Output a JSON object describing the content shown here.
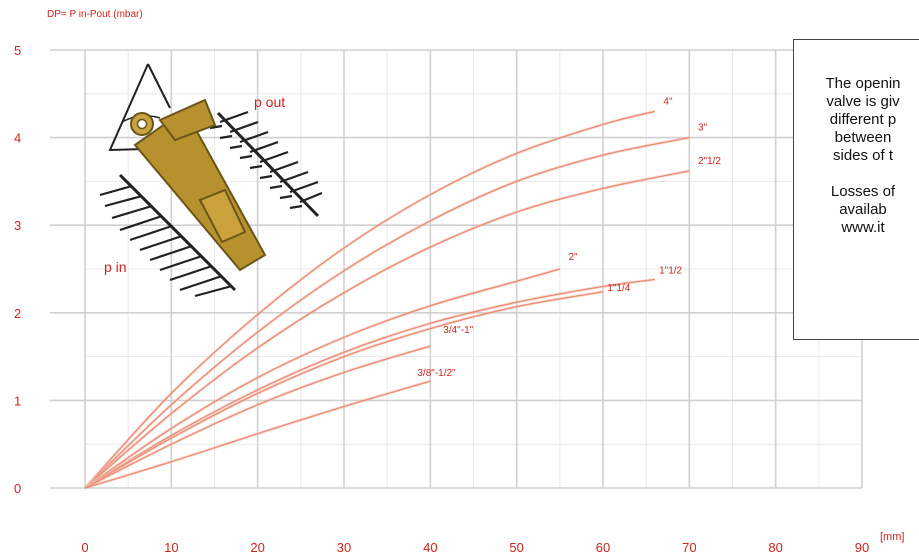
{
  "chart_data": {
    "type": "line",
    "ylabel": "DP= P in-Pout (mbar)",
    "xlabel": "[mm]",
    "xlim": [
      0,
      90
    ],
    "ylim": [
      0,
      5
    ],
    "x_ticks": [
      0,
      10,
      20,
      30,
      40,
      50,
      60,
      70,
      80,
      90
    ],
    "y_ticks": [
      0,
      1,
      2,
      3,
      4,
      5
    ],
    "grid": true,
    "series": [
      {
        "name": "4\"",
        "x": [
          0,
          10,
          20,
          30,
          40,
          50,
          60,
          66
        ],
        "y": [
          0,
          1.08,
          1.98,
          2.74,
          3.35,
          3.82,
          4.15,
          4.3
        ]
      },
      {
        "name": "3\"",
        "x": [
          0,
          10,
          20,
          30,
          40,
          50,
          60,
          70
        ],
        "y": [
          0,
          0.95,
          1.78,
          2.48,
          3.05,
          3.5,
          3.8,
          4.0
        ]
      },
      {
        "name": "2\"1/2",
        "x": [
          0,
          10,
          20,
          30,
          40,
          50,
          60,
          70
        ],
        "y": [
          0,
          0.85,
          1.6,
          2.23,
          2.75,
          3.15,
          3.42,
          3.62
        ]
      },
      {
        "name": "2\"",
        "x": [
          0,
          10,
          20,
          30,
          40,
          50,
          55
        ],
        "y": [
          0,
          0.68,
          1.26,
          1.72,
          2.08,
          2.36,
          2.5
        ]
      },
      {
        "name": "1\"1/2",
        "x": [
          0,
          10,
          20,
          30,
          40,
          50,
          60,
          66
        ],
        "y": [
          0,
          0.6,
          1.12,
          1.55,
          1.88,
          2.12,
          2.3,
          2.38
        ]
      },
      {
        "name": "1\"1/4",
        "x": [
          0,
          10,
          20,
          30,
          40,
          50,
          60
        ],
        "y": [
          0,
          0.57,
          1.08,
          1.5,
          1.82,
          2.07,
          2.24
        ]
      },
      {
        "name": "3/4\"-1\"",
        "x": [
          0,
          10,
          20,
          30,
          40
        ],
        "y": [
          0,
          0.5,
          0.95,
          1.32,
          1.62
        ]
      },
      {
        "name": "3/8\"-1/2\"",
        "x": [
          0,
          10,
          20,
          30,
          40
        ],
        "y": [
          0,
          0.3,
          0.62,
          0.93,
          1.22
        ]
      }
    ]
  },
  "series_labels": [
    {
      "text": "4\"",
      "x": 67,
      "y": 4.38
    },
    {
      "text": "3\"",
      "x": 71,
      "y": 4.08
    },
    {
      "text": "2\"1/2",
      "x": 71,
      "y": 3.7
    },
    {
      "text": "2\"",
      "x": 56,
      "y": 2.6
    },
    {
      "text": "1\"1/2",
      "x": 66.5,
      "y": 2.45
    },
    {
      "text": "1\"1/4",
      "x": 60.5,
      "y": 2.25
    },
    {
      "text": "3/4\"-1\"",
      "x": 41.5,
      "y": 1.77
    },
    {
      "text": "3/8\"-1/2\"",
      "x": 38.5,
      "y": 1.28
    }
  ],
  "valve_labels": {
    "p_out": "p out",
    "p_in": "p in"
  },
  "note": {
    "paragraph1": "The openin\nvalve is giv\ndifferent p\nbetween\nsides of t",
    "paragraph2": "Losses of\navailab\nwww.it"
  },
  "colors": {
    "accent": "#d2231e",
    "curve": "#e8836a",
    "valve": "#b8912f"
  }
}
